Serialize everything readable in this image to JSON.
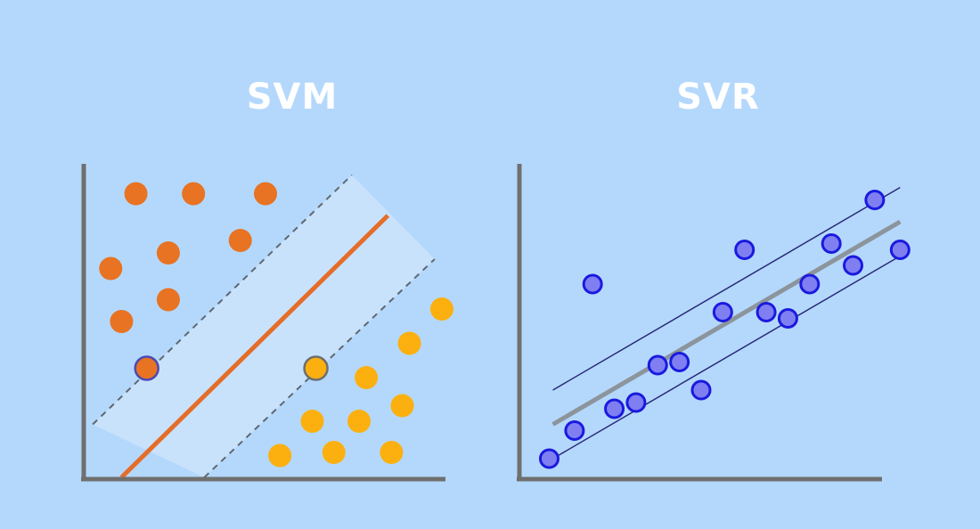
{
  "titles": {
    "svm": "SVM",
    "svr": "SVR"
  },
  "colors": {
    "background": "#b4d8fc",
    "axis": "#6f6f6f",
    "margin_band": "#c8e2fc",
    "class_a": "#e87322",
    "class_b": "#fbb00f",
    "svm_boundary": "#e56d28",
    "svm_margin_lines": "#5e6872",
    "svr_points_fill": "#7f7ff2",
    "svr_points_stroke": "#1a1adf",
    "svr_fit_line": "#8c949c",
    "svr_epsilon_lines": "#2a2a7a"
  },
  "chart_data": [
    {
      "type": "scatter",
      "title": "SVM",
      "xlim": [
        0,
        100
      ],
      "ylim": [
        0,
        100
      ],
      "boundary": {
        "x1": 10,
        "y1": 0,
        "x2": 84,
        "y2": 84
      },
      "margin_upper": {
        "x1": 2,
        "y1": 17,
        "x2": 74,
        "y2": 97
      },
      "margin_lower": {
        "x1": 33,
        "y1": 0,
        "x2": 97,
        "y2": 70
      },
      "series": [
        {
          "points": [
            [
              14,
              91
            ],
            [
              30,
              91
            ],
            [
              50,
              91
            ],
            [
              43,
              76
            ],
            [
              7,
              67
            ],
            [
              23,
              72
            ],
            [
              23,
              57
            ],
            [
              10,
              50
            ],
            [
              17,
              35
            ]
          ],
          "support_vectors": [
            [
              17,
              35
            ]
          ]
        },
        {
          "points": [
            [
              99,
              54
            ],
            [
              90,
              43
            ],
            [
              64,
              35
            ],
            [
              78,
              32
            ],
            [
              88,
              23
            ],
            [
              63,
              18
            ],
            [
              76,
              18
            ],
            [
              54,
              7
            ],
            [
              69,
              8
            ],
            [
              85,
              8
            ]
          ],
          "support_vectors": [
            [
              64,
              35
            ]
          ]
        }
      ]
    },
    {
      "type": "scatter",
      "title": "SVR",
      "xlim": [
        0,
        100
      ],
      "ylim": [
        0,
        100
      ],
      "fit_line": {
        "x1": 9,
        "y1": 17,
        "x2": 105,
        "y2": 82
      },
      "epsilon_upper": {
        "x1": 9,
        "y1": 28,
        "x2": 105,
        "y2": 93
      },
      "epsilon_lower": {
        "x1": 9,
        "y1": 6,
        "x2": 105,
        "y2": 71
      },
      "points": [
        [
          8,
          6
        ],
        [
          15,
          15
        ],
        [
          26,
          22
        ],
        [
          32,
          24
        ],
        [
          38,
          36
        ],
        [
          44,
          37
        ],
        [
          50,
          28
        ],
        [
          56,
          53
        ],
        [
          62,
          73
        ],
        [
          68,
          53
        ],
        [
          74,
          51
        ],
        [
          80,
          62
        ],
        [
          86,
          75
        ],
        [
          92,
          68
        ],
        [
          98,
          89
        ],
        [
          105,
          73
        ],
        [
          20,
          62
        ]
      ]
    }
  ]
}
